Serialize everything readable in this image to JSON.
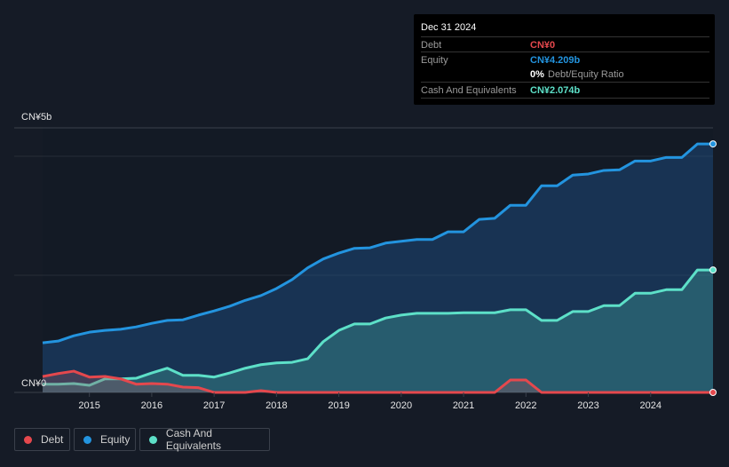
{
  "tooltip": {
    "date": "Dec 31 2024",
    "debt_label": "Debt",
    "debt_value": "CN¥0",
    "equity_label": "Equity",
    "equity_value": "CN¥4.209b",
    "ratio_value": "0%",
    "ratio_label": "Debt/Equity Ratio",
    "cash_label": "Cash And Equivalents",
    "cash_value": "CN¥2.074b"
  },
  "legend": {
    "debt": "Debt",
    "equity": "Equity",
    "cash": "Cash And Equivalents"
  },
  "colors": {
    "debt": "#e5484d",
    "equity": "#2394df",
    "cash": "#5de0c8"
  },
  "chart_data": {
    "type": "area",
    "title": "",
    "ylabel_top": "CN¥5b",
    "ylabel_bottom": "CN¥0",
    "ylim": [
      0,
      5
    ],
    "xlim": [
      2014.25,
      2025.0
    ],
    "xticks": [
      "2015",
      "2016",
      "2017",
      "2018",
      "2019",
      "2020",
      "2021",
      "2022",
      "2023",
      "2024"
    ],
    "x_start": 2014.25,
    "x_step": 0.25,
    "series": [
      {
        "name": "Debt",
        "key": "debt",
        "values": [
          0.27,
          0.32,
          0.36,
          0.26,
          0.27,
          0.23,
          0.14,
          0.15,
          0.14,
          0.09,
          0.08,
          0,
          0,
          0,
          0.03,
          0,
          0,
          0,
          0,
          0,
          0,
          0,
          0,
          0,
          0,
          0,
          0,
          0,
          0,
          0,
          0.21,
          0.21,
          0,
          0,
          0,
          0,
          0,
          0,
          0,
          0,
          0,
          0,
          0,
          0
        ]
      },
      {
        "name": "Equity",
        "key": "equity",
        "values": [
          0.84,
          0.87,
          0.96,
          1.02,
          1.05,
          1.07,
          1.11,
          1.17,
          1.22,
          1.23,
          1.31,
          1.38,
          1.46,
          1.56,
          1.64,
          1.76,
          1.91,
          2.11,
          2.26,
          2.36,
          2.44,
          2.45,
          2.53,
          2.56,
          2.59,
          2.59,
          2.72,
          2.72,
          2.93,
          2.95,
          3.17,
          3.17,
          3.5,
          3.5,
          3.68,
          3.7,
          3.76,
          3.77,
          3.92,
          3.92,
          3.98,
          3.98,
          4.209,
          4.209
        ]
      },
      {
        "name": "Cash And Equivalents",
        "key": "cash",
        "values": [
          0.14,
          0.14,
          0.15,
          0.12,
          0.23,
          0.23,
          0.24,
          0.33,
          0.41,
          0.29,
          0.29,
          0.26,
          0.33,
          0.41,
          0.47,
          0.5,
          0.51,
          0.57,
          0.86,
          1.05,
          1.16,
          1.16,
          1.26,
          1.31,
          1.34,
          1.34,
          1.34,
          1.35,
          1.35,
          1.35,
          1.4,
          1.4,
          1.22,
          1.22,
          1.37,
          1.37,
          1.47,
          1.47,
          1.68,
          1.68,
          1.74,
          1.74,
          2.074,
          2.074
        ]
      }
    ]
  }
}
